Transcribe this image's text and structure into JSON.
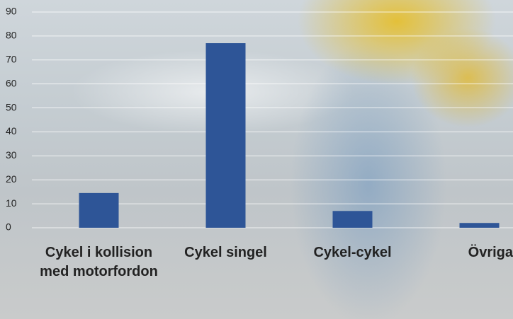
{
  "chart_data": {
    "type": "bar",
    "categories": [
      "Cykel i kollision med motorfordon",
      "Cykel singel",
      "Cykel-cykel",
      "Övriga"
    ],
    "values": [
      14.5,
      77,
      7,
      2
    ],
    "color": "#2e5597",
    "ylim": [
      0,
      90
    ],
    "yticks": [
      0,
      10,
      20,
      30,
      40,
      50,
      60,
      70,
      80,
      90
    ],
    "grid": true
  }
}
